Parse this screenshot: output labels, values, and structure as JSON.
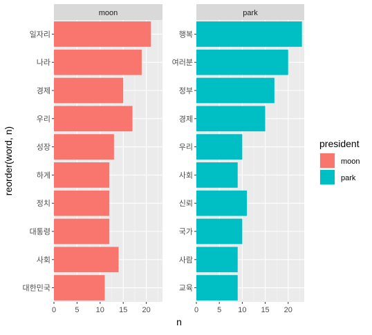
{
  "chart_data": {
    "type": "bar",
    "orientation": "horizontal",
    "facet_by": "president",
    "xlabel": "n",
    "ylabel": "reorder(word, n)",
    "xlim": [
      0,
      23.5
    ],
    "x_ticks": [
      0,
      5,
      10,
      15,
      20
    ],
    "grid": true,
    "legend": {
      "title": "president",
      "placement": "right",
      "entries": [
        {
          "label": "moon",
          "color": "#F8766D"
        },
        {
          "label": "park",
          "color": "#00BFC4"
        }
      ]
    },
    "panels": [
      {
        "name": "moon",
        "color": "#F8766D",
        "categories": [
          "일자리",
          "나라",
          "경제",
          "우리",
          "성장",
          "하게",
          "정치",
          "대통령",
          "사회",
          "대한민국"
        ],
        "values": [
          21,
          19,
          15,
          17,
          13,
          12,
          12,
          12,
          14,
          11
        ]
      },
      {
        "name": "park",
        "color": "#00BFC4",
        "categories": [
          "행복",
          "여러분",
          "정부",
          "경제",
          "우리",
          "사회",
          "신뢰",
          "국가",
          "사람",
          "교육"
        ],
        "values": [
          23,
          20,
          17,
          15,
          10,
          9,
          11,
          10,
          9,
          9
        ]
      }
    ]
  }
}
